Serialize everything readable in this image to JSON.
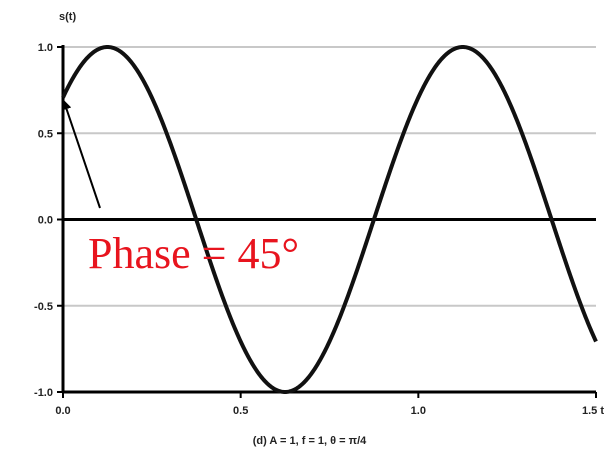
{
  "chart_data": {
    "type": "line",
    "ylabel": "s(t)",
    "xlabel": "(d) A = 1, f = 1, θ = π/4",
    "xlim": [
      0,
      1.5
    ],
    "ylim": [
      -1.0,
      1.0
    ],
    "x_ticks": [
      0.0,
      0.5,
      1.0,
      1.5
    ],
    "x_tick_labels": [
      "0.0",
      "0.5",
      "1.0",
      "1.5 t"
    ],
    "y_ticks": [
      1.0,
      0.5,
      0.0,
      -0.5,
      -1.0
    ],
    "y_tick_labels": [
      "1.0",
      "0.5",
      "0.0",
      "-0.5",
      "-1.0"
    ],
    "grid": true,
    "series": [
      {
        "amplitude": 1,
        "frequency": 1,
        "phase_deg": 45,
        "color": "#111111"
      }
    ],
    "annotation": {
      "text": "Phase = 45°",
      "points_to": [
        0.0,
        0.7071
      ],
      "color": "#e8141e"
    }
  }
}
